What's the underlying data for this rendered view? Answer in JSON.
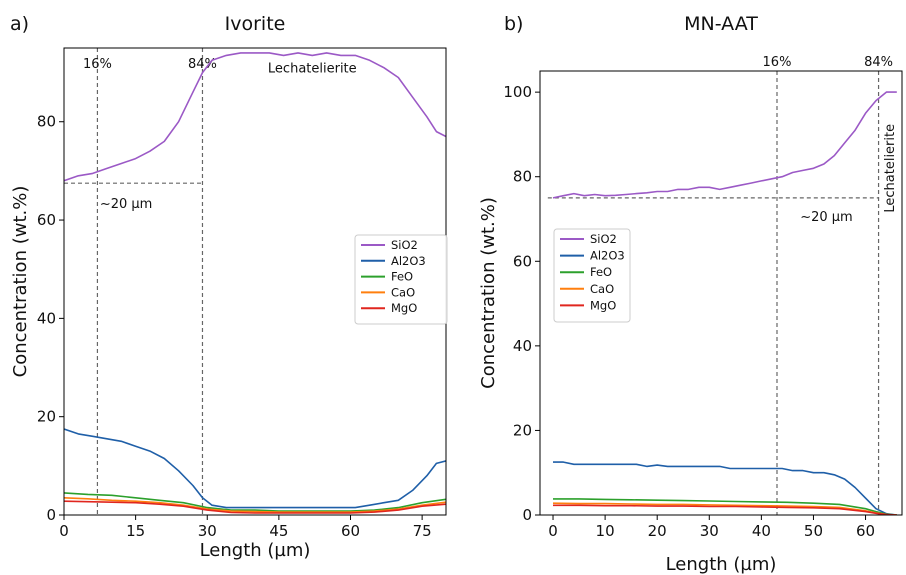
{
  "figure": {
    "background": "#ffffff"
  },
  "chart_data": [
    {
      "type": "line",
      "panel_letter": "a)",
      "title": "Ivorite",
      "xlabel": "Length (µm)",
      "ylabel": "Concentration (wt.%)",
      "xlim": [
        0,
        80
      ],
      "ylim": [
        0,
        95
      ],
      "xticks": [
        0,
        15,
        30,
        45,
        60,
        75
      ],
      "yticks": [
        0,
        20,
        40,
        60,
        80
      ],
      "grid": false,
      "legend_position": "center-right",
      "series": [
        {
          "name": "SiO2",
          "color": "#9b59c6",
          "x": [
            0,
            3,
            6,
            9,
            12,
            15,
            18,
            21,
            24,
            27,
            29,
            31,
            34,
            37,
            40,
            43,
            46,
            49,
            52,
            55,
            58,
            61,
            64,
            67,
            70,
            73,
            76,
            78,
            80
          ],
          "y": [
            68,
            69,
            69.5,
            70.5,
            71.5,
            72.5,
            74,
            76,
            80,
            86,
            90,
            92.5,
            93.5,
            94,
            94,
            94,
            93.5,
            94,
            93.5,
            94,
            93.5,
            93.5,
            92.5,
            91,
            89,
            85,
            81,
            78,
            77
          ]
        },
        {
          "name": "Al2O3",
          "color": "#1f5fa8",
          "x": [
            0,
            3,
            6,
            9,
            12,
            15,
            18,
            21,
            24,
            27,
            29,
            31,
            34,
            37,
            40,
            43,
            46,
            49,
            52,
            55,
            58,
            61,
            64,
            67,
            70,
            73,
            76,
            78,
            80
          ],
          "y": [
            17.5,
            16.5,
            16,
            15.5,
            15,
            14,
            13,
            11.5,
            9,
            6,
            3.5,
            2,
            1.5,
            1.5,
            1.5,
            1.5,
            1.5,
            1.5,
            1.5,
            1.5,
            1.5,
            1.5,
            2,
            2.5,
            3,
            5,
            8,
            10.5,
            11
          ]
        },
        {
          "name": "FeO",
          "color": "#2ca02c",
          "x": [
            0,
            5,
            10,
            15,
            20,
            25,
            30,
            35,
            40,
            45,
            50,
            55,
            60,
            65,
            70,
            75,
            80
          ],
          "y": [
            4.5,
            4.2,
            4,
            3.5,
            3,
            2.5,
            1.5,
            1,
            1,
            0.8,
            0.8,
            0.8,
            0.8,
            1,
            1.5,
            2.5,
            3.2
          ]
        },
        {
          "name": "CaO",
          "color": "#ff7f0e",
          "x": [
            0,
            5,
            10,
            15,
            20,
            25,
            30,
            35,
            40,
            45,
            50,
            55,
            60,
            65,
            70,
            75,
            80
          ],
          "y": [
            3.5,
            3.3,
            3,
            2.8,
            2.5,
            2,
            1.2,
            0.8,
            0.7,
            0.6,
            0.6,
            0.6,
            0.6,
            0.8,
            1.2,
            2,
            2.6
          ]
        },
        {
          "name": "MgO",
          "color": "#e0261f",
          "x": [
            0,
            5,
            10,
            15,
            20,
            25,
            30,
            35,
            40,
            45,
            50,
            55,
            60,
            65,
            70,
            75,
            80
          ],
          "y": [
            2.8,
            2.7,
            2.6,
            2.5,
            2.2,
            1.8,
            1,
            0.5,
            0.4,
            0.4,
            0.4,
            0.4,
            0.4,
            0.6,
            1,
            1.8,
            2.2
          ]
        }
      ],
      "reference_lines": [
        {
          "orientation": "vertical",
          "x": 7,
          "label": "16%"
        },
        {
          "orientation": "vertical",
          "x": 29,
          "label": "84%"
        },
        {
          "orientation": "horizontal",
          "y": 67.5,
          "x_from": 0,
          "x_to": 29
        }
      ],
      "annotations": [
        {
          "text": "~20 µm",
          "x": 13,
          "y": 62.5
        },
        {
          "text": "Lechatelierite",
          "x": 52,
          "y": 90
        }
      ]
    },
    {
      "type": "line",
      "panel_letter": "b)",
      "title": "MN-AAT",
      "xlabel": "Length (µm)",
      "ylabel": "Concentration (wt.%)",
      "xlim": [
        -2.5,
        67
      ],
      "ylim": [
        0,
        105
      ],
      "xticks": [
        0,
        10,
        20,
        30,
        40,
        50,
        60
      ],
      "yticks": [
        0,
        20,
        40,
        60,
        80,
        100
      ],
      "grid": false,
      "legend_position": "center-left",
      "series": [
        {
          "name": "SiO2",
          "color": "#9b59c6",
          "x": [
            0,
            2,
            4,
            6,
            8,
            10,
            12,
            14,
            16,
            18,
            20,
            22,
            24,
            26,
            28,
            30,
            32,
            34,
            36,
            38,
            40,
            42,
            44,
            46,
            48,
            50,
            52,
            54,
            56,
            58,
            60,
            62,
            64,
            66
          ],
          "y": [
            75,
            75.5,
            76,
            75.5,
            75.8,
            75.5,
            75.6,
            75.8,
            76,
            76.2,
            76.5,
            76.5,
            77,
            77,
            77.5,
            77.5,
            77,
            77.5,
            78,
            78.5,
            79,
            79.5,
            80,
            81,
            81.5,
            82,
            83,
            85,
            88,
            91,
            95,
            98,
            100,
            100
          ]
        },
        {
          "name": "Al2O3",
          "color": "#1f5fa8",
          "x": [
            0,
            2,
            4,
            6,
            8,
            10,
            12,
            14,
            16,
            18,
            20,
            22,
            24,
            26,
            28,
            30,
            32,
            34,
            36,
            38,
            40,
            42,
            44,
            46,
            48,
            50,
            52,
            54,
            56,
            58,
            60,
            62,
            64,
            66
          ],
          "y": [
            12.5,
            12.5,
            12,
            12,
            12,
            12,
            12,
            12,
            12,
            11.5,
            11.8,
            11.5,
            11.5,
            11.5,
            11.5,
            11.5,
            11.5,
            11,
            11,
            11,
            11,
            11,
            11,
            10.5,
            10.5,
            10,
            10,
            9.5,
            8.5,
            6.5,
            4,
            1.5,
            0.3,
            0
          ]
        },
        {
          "name": "FeO",
          "color": "#2ca02c",
          "x": [
            0,
            5,
            10,
            15,
            20,
            25,
            30,
            35,
            40,
            45,
            50,
            55,
            60,
            62,
            64,
            66
          ],
          "y": [
            3.8,
            3.8,
            3.7,
            3.6,
            3.5,
            3.4,
            3.3,
            3.2,
            3.1,
            3,
            2.8,
            2.5,
            1.5,
            0.8,
            0.2,
            0
          ]
        },
        {
          "name": "CaO",
          "color": "#ff7f0e",
          "x": [
            0,
            5,
            10,
            15,
            20,
            25,
            30,
            35,
            40,
            45,
            50,
            55,
            60,
            62,
            64,
            66
          ],
          "y": [
            2.8,
            2.7,
            2.7,
            2.6,
            2.5,
            2.5,
            2.4,
            2.3,
            2.2,
            2.1,
            2,
            1.8,
            1,
            0.5,
            0.1,
            0
          ]
        },
        {
          "name": "MgO",
          "color": "#e0261f",
          "x": [
            0,
            5,
            10,
            15,
            20,
            25,
            30,
            35,
            40,
            45,
            50,
            55,
            60,
            62,
            64,
            66
          ],
          "y": [
            2.3,
            2.3,
            2.2,
            2.2,
            2.1,
            2.1,
            2,
            2,
            1.9,
            1.8,
            1.7,
            1.5,
            0.8,
            0.4,
            0.1,
            0
          ]
        }
      ],
      "reference_lines": [
        {
          "orientation": "vertical",
          "x": 43,
          "label": "16%"
        },
        {
          "orientation": "vertical",
          "x": 62.5,
          "label": "84%"
        },
        {
          "orientation": "horizontal",
          "y": 75,
          "x_from": -1,
          "x_to": 62.5
        }
      ],
      "annotations": [
        {
          "text": "~20 µm",
          "x": 52.5,
          "y": 69.5
        },
        {
          "text": "Lechatelierite",
          "x": 65.5,
          "y": 82,
          "rotation": -90
        }
      ]
    }
  ]
}
